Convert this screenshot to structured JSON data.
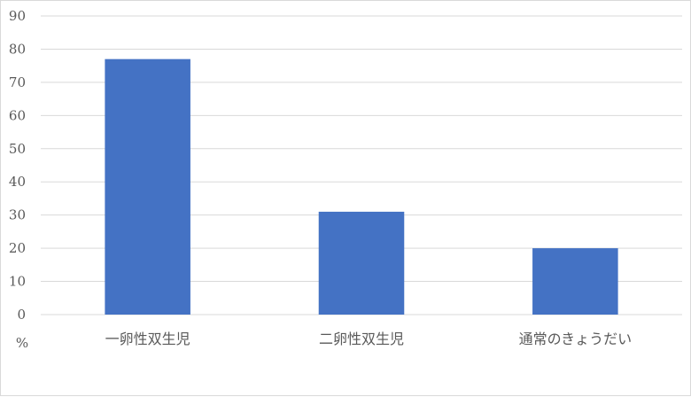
{
  "chart_data": {
    "type": "bar",
    "categories": [
      "一卵性双生児",
      "二卵性双生児",
      "通常のきょうだい"
    ],
    "values": [
      77,
      31,
      20
    ],
    "title": "",
    "xlabel": "",
    "ylabel": "%",
    "ylim": [
      0,
      90
    ],
    "yticks": [
      "0",
      "10",
      "20",
      "30",
      "40",
      "50",
      "60",
      "70",
      "80",
      "90"
    ],
    "grid": true,
    "legend": "none",
    "bar_color": "#4472C4",
    "grid_color": "#d9d9d9"
  }
}
